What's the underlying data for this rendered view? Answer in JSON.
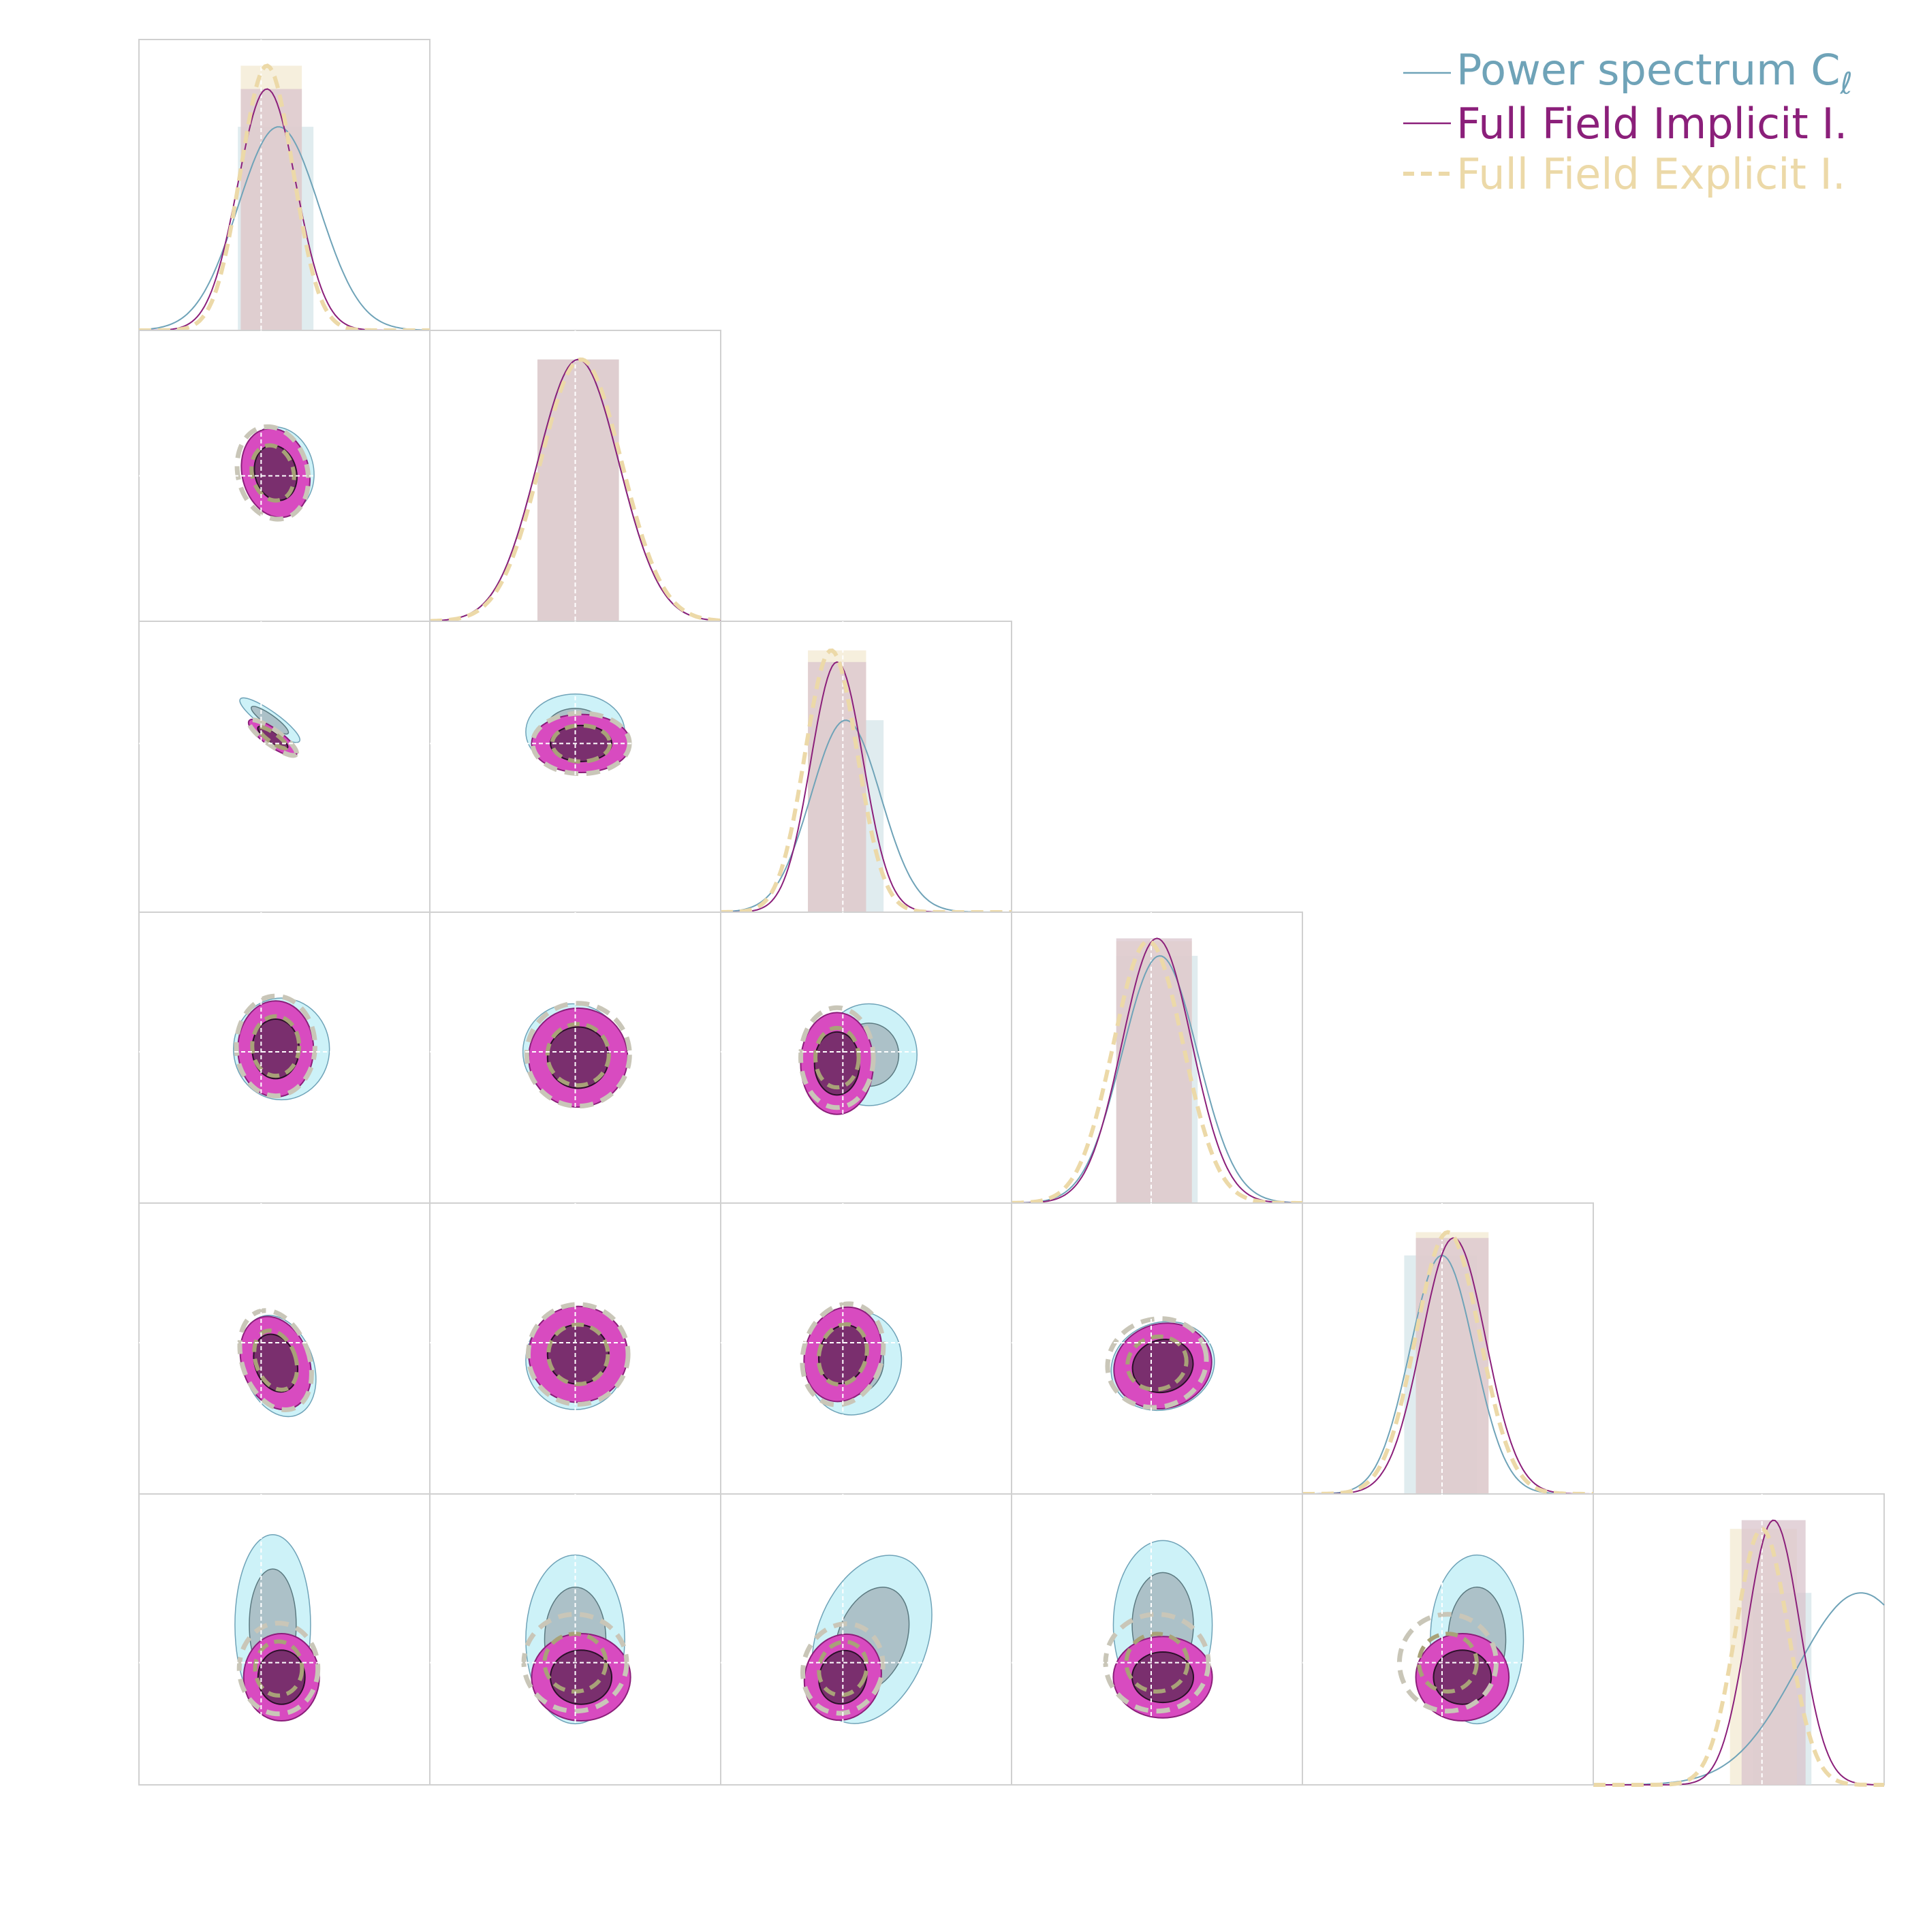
{
  "legend": {
    "items": [
      {
        "label": "Power spectrum C",
        "subscript": "ℓ",
        "color": "#6fa3b8",
        "style": "solid"
      },
      {
        "label": "Full Field Implicit I.",
        "color": "#8b1f7a",
        "style": "solid"
      },
      {
        "label": "Full Field Explicit I.",
        "color": "#ecd9a8",
        "style": "dashed"
      }
    ]
  },
  "colors": {
    "powerspectrum_fill": "#cdf2f8",
    "powerspectrum_inner": "#a9bcc3",
    "powerspectrum_line": "#6fa3b8",
    "implicit_outer": "#d84bc0",
    "implicit_inner": "#7a2f6e",
    "implicit_line": "#8b1f7a",
    "explicit_line": "#ecd9a8",
    "explicit_contour": "#c9c6b8",
    "band_fill": "#d9c4cc",
    "grid": "#d0d0d0",
    "truth_line": "#ffffff"
  },
  "chart_data": {
    "type": "corner",
    "n_params": 6,
    "series": [
      {
        "name": "Power spectrum C_ℓ",
        "style": "solid"
      },
      {
        "name": "Full Field Implicit I.",
        "style": "solid"
      },
      {
        "name": "Full Field Explicit I.",
        "style": "dashed"
      }
    ],
    "axis_labels": [],
    "tick_labels": [],
    "grid": true,
    "legend_position": "top-right",
    "units": "normalized posterior coordinates",
    "marginals": [
      {
        "param": 1,
        "truth": 0.42,
        "power": {
          "mu": 0.48,
          "sigma": 0.14,
          "peak": 0.7,
          "band": [
            0.34,
            0.6
          ]
        },
        "implicit": {
          "mu": 0.44,
          "sigma": 0.1,
          "peak": 0.83,
          "band": [
            0.35,
            0.56
          ]
        },
        "explicit": {
          "mu": 0.44,
          "sigma": 0.09,
          "peak": 0.91,
          "band": [
            0.35,
            0.56
          ]
        }
      },
      {
        "param": 2,
        "truth": 0.5,
        "power": {
          "mu": 0.51,
          "sigma": 0.14,
          "peak": 0.9,
          "band": [
            0.37,
            0.65
          ]
        },
        "implicit": {
          "mu": 0.51,
          "sigma": 0.14,
          "peak": 0.9,
          "band": [
            0.37,
            0.65
          ]
        },
        "explicit": {
          "mu": 0.52,
          "sigma": 0.14,
          "peak": 0.9,
          "band": [
            0.37,
            0.65
          ]
        }
      },
      {
        "param": 3,
        "truth": 0.42,
        "power": {
          "mu": 0.43,
          "sigma": 0.12,
          "peak": 0.66,
          "band": [
            0.3,
            0.56
          ]
        },
        "implicit": {
          "mu": 0.4,
          "sigma": 0.09,
          "peak": 0.86,
          "band": [
            0.3,
            0.5
          ]
        },
        "explicit": {
          "mu": 0.38,
          "sigma": 0.09,
          "peak": 0.9,
          "band": [
            0.3,
            0.5
          ]
        }
      },
      {
        "param": 4,
        "truth": 0.48,
        "power": {
          "mu": 0.51,
          "sigma": 0.13,
          "peak": 0.85,
          "band": [
            0.36,
            0.64
          ]
        },
        "implicit": {
          "mu": 0.5,
          "sigma": 0.12,
          "peak": 0.91,
          "band": [
            0.36,
            0.62
          ]
        },
        "explicit": {
          "mu": 0.47,
          "sigma": 0.12,
          "peak": 0.9,
          "band": [
            0.36,
            0.62
          ]
        }
      },
      {
        "param": 5,
        "truth": 0.48,
        "power": {
          "mu": 0.48,
          "sigma": 0.11,
          "peak": 0.82,
          "band": [
            0.35,
            0.6
          ]
        },
        "implicit": {
          "mu": 0.52,
          "sigma": 0.11,
          "peak": 0.88,
          "band": [
            0.39,
            0.64
          ]
        },
        "explicit": {
          "mu": 0.5,
          "sigma": 0.11,
          "peak": 0.9,
          "band": [
            0.39,
            0.64
          ]
        }
      },
      {
        "param": 6,
        "truth": 0.58,
        "power": {
          "mu": 0.92,
          "sigma": 0.22,
          "peak": 0.66,
          "band": [
            0.55,
            0.75
          ]
        },
        "implicit": {
          "mu": 0.62,
          "sigma": 0.09,
          "peak": 0.91,
          "band": [
            0.51,
            0.73
          ]
        },
        "explicit": {
          "mu": 0.58,
          "sigma": 0.09,
          "peak": 0.88,
          "band": [
            0.47,
            0.7
          ]
        }
      }
    ],
    "pairs": [
      {
        "row": 2,
        "col": 1,
        "truth": [
          0.42,
          0.5
        ],
        "power": [
          0.48,
          0.48,
          0.24,
          0.3,
          -0.25
        ],
        "implicit": [
          0.47,
          0.49,
          0.23,
          0.31,
          -0.25
        ],
        "explicit": [
          0.46,
          0.49,
          0.23,
          0.31,
          -0.25
        ]
      },
      {
        "row": 3,
        "col": 1,
        "truth": [
          0.42,
          0.42
        ],
        "power": [
          0.45,
          0.34,
          0.25,
          0.06,
          0.62
        ],
        "implicit": [
          0.46,
          0.4,
          0.2,
          0.06,
          0.62
        ],
        "explicit": [
          0.46,
          0.4,
          0.19,
          0.05,
          0.62
        ]
      },
      {
        "row": 3,
        "col": 2,
        "truth": [
          0.5,
          0.42
        ],
        "power": [
          0.5,
          0.38,
          0.34,
          0.26,
          0.0
        ],
        "implicit": [
          0.52,
          0.42,
          0.34,
          0.2,
          0.0
        ],
        "explicit": [
          0.52,
          0.42,
          0.32,
          0.2,
          0.0
        ]
      },
      {
        "row": 4,
        "col": 1,
        "truth": [
          0.42,
          0.48
        ],
        "power": [
          0.49,
          0.47,
          0.33,
          0.35,
          0.0
        ],
        "implicit": [
          0.47,
          0.47,
          0.26,
          0.33,
          0.0
        ],
        "explicit": [
          0.47,
          0.46,
          0.26,
          0.33,
          0.0
        ]
      },
      {
        "row": 4,
        "col": 2,
        "truth": [
          0.5,
          0.48
        ],
        "power": [
          0.49,
          0.48,
          0.34,
          0.33,
          0.0
        ],
        "implicit": [
          0.51,
          0.5,
          0.34,
          0.34,
          0.0
        ],
        "explicit": [
          0.51,
          0.49,
          0.34,
          0.34,
          0.0
        ]
      },
      {
        "row": 4,
        "col": 3,
        "truth": [
          0.42,
          0.48
        ],
        "power": [
          0.51,
          0.49,
          0.33,
          0.35,
          0.0
        ],
        "implicit": [
          0.4,
          0.52,
          0.25,
          0.35,
          0.0
        ],
        "explicit": [
          0.4,
          0.5,
          0.24,
          0.33,
          0.0
        ]
      },
      {
        "row": 5,
        "col": 1,
        "truth": [
          0.42,
          0.48
        ],
        "power": [
          0.48,
          0.56,
          0.24,
          0.36,
          -0.35
        ],
        "implicit": [
          0.47,
          0.55,
          0.23,
          0.33,
          -0.35
        ],
        "explicit": [
          0.47,
          0.54,
          0.22,
          0.34,
          -0.35
        ]
      },
      {
        "row": 5,
        "col": 2,
        "truth": [
          0.5,
          0.48
        ],
        "power": [
          0.5,
          0.54,
          0.34,
          0.34,
          0.0
        ],
        "implicit": [
          0.51,
          0.52,
          0.34,
          0.33,
          0.0
        ],
        "explicit": [
          0.51,
          0.52,
          0.33,
          0.33,
          0.0
        ]
      },
      {
        "row": 5,
        "col": 3,
        "truth": [
          0.42,
          0.48
        ],
        "power": [
          0.46,
          0.55,
          0.32,
          0.36,
          0.3
        ],
        "implicit": [
          0.42,
          0.52,
          0.26,
          0.33,
          0.3
        ],
        "explicit": [
          0.42,
          0.52,
          0.26,
          0.34,
          0.3
        ]
      },
      {
        "row": 5,
        "col": 4,
        "truth": [
          0.48,
          0.48
        ],
        "power": [
          0.52,
          0.56,
          0.36,
          0.3,
          -0.3
        ],
        "implicit": [
          0.52,
          0.56,
          0.34,
          0.29,
          -0.3
        ],
        "explicit": [
          0.5,
          0.55,
          0.33,
          0.29,
          -0.3
        ]
      },
      {
        "row": 6,
        "col": 1,
        "truth": [
          0.42,
          0.58
        ],
        "power": [
          0.46,
          0.45,
          0.26,
          0.62,
          0.0
        ],
        "implicit": [
          0.49,
          0.63,
          0.26,
          0.3,
          0.0
        ],
        "explicit": [
          0.48,
          0.6,
          0.26,
          0.3,
          0.0
        ]
      },
      {
        "row": 6,
        "col": 2,
        "truth": [
          0.5,
          0.58
        ],
        "power": [
          0.5,
          0.5,
          0.34,
          0.58,
          0.0
        ],
        "implicit": [
          0.52,
          0.63,
          0.34,
          0.3,
          0.0
        ],
        "explicit": [
          0.5,
          0.58,
          0.34,
          0.32,
          0.0
        ]
      },
      {
        "row": 6,
        "col": 3,
        "truth": [
          0.42,
          0.58
        ],
        "power": [
          0.52,
          0.5,
          0.38,
          0.6,
          0.35
        ],
        "implicit": [
          0.42,
          0.63,
          0.26,
          0.3,
          0.35
        ],
        "explicit": [
          0.42,
          0.6,
          0.26,
          0.3,
          0.35
        ]
      },
      {
        "row": 6,
        "col": 4,
        "truth": [
          0.48,
          0.58
        ],
        "power": [
          0.52,
          0.45,
          0.34,
          0.58,
          0.0
        ],
        "implicit": [
          0.52,
          0.63,
          0.34,
          0.28,
          0.0
        ],
        "explicit": [
          0.5,
          0.58,
          0.34,
          0.32,
          0.0
        ]
      },
      {
        "row": 6,
        "col": 5,
        "truth": [
          0.48,
          0.58
        ],
        "power": [
          0.6,
          0.5,
          0.32,
          0.58,
          0.0
        ],
        "implicit": [
          0.55,
          0.63,
          0.32,
          0.3,
          0.0
        ],
        "explicit": [
          0.5,
          0.58,
          0.32,
          0.32,
          0.0
        ]
      }
    ]
  }
}
